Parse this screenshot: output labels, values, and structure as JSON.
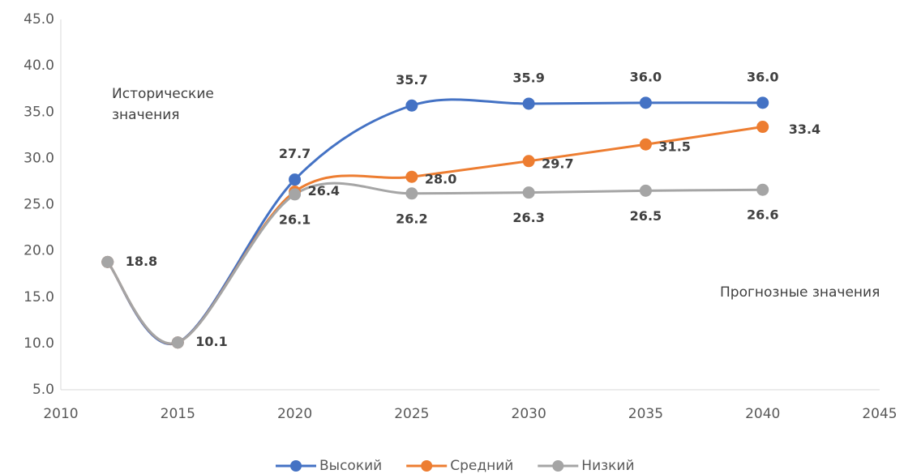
{
  "chart_data": {
    "type": "line",
    "x": [
      2012,
      2015,
      2020,
      2025,
      2030,
      2035,
      2040
    ],
    "series": [
      {
        "name": "Высокий",
        "color": "#4472c4",
        "values": [
          18.8,
          10.1,
          27.7,
          35.7,
          35.9,
          36.0,
          36.0
        ],
        "value_labels": [
          null,
          null,
          "27.7",
          "35.7",
          "35.9",
          "36.0",
          "36.0"
        ]
      },
      {
        "name": "Средний",
        "color": "#ed7d31",
        "values": [
          18.8,
          10.1,
          26.4,
          28.0,
          29.7,
          31.5,
          33.4
        ],
        "value_labels": [
          null,
          null,
          "26.4",
          "28.0",
          "29.7",
          "31.5",
          "33.4"
        ]
      },
      {
        "name": "Низкий",
        "color": "#a5a5a5",
        "values": [
          18.8,
          10.1,
          26.1,
          26.2,
          26.3,
          26.5,
          26.6
        ],
        "value_labels": [
          "18.8",
          "10.1",
          "26.1",
          "26.2",
          "26.3",
          "26.5",
          "26.6"
        ]
      }
    ],
    "annotations": [
      "Исторические значения",
      "Прогнозные значения"
    ],
    "xlim": [
      2010,
      2045
    ],
    "xticks": [
      2010,
      2015,
      2020,
      2025,
      2030,
      2035,
      2040,
      2045
    ],
    "ylim": [
      5,
      45
    ],
    "yticks": [
      {
        "value": 5,
        "label": "5.0"
      },
      {
        "value": 10,
        "label": "10.0"
      },
      {
        "value": 15,
        "label": "15.0"
      },
      {
        "value": 20,
        "label": "20.0"
      },
      {
        "value": 25,
        "label": "25.0"
      },
      {
        "value": 30,
        "label": "30.0"
      },
      {
        "value": 35,
        "label": "35.0"
      },
      {
        "value": 40,
        "label": "40.0"
      },
      {
        "value": 45,
        "label": "45.0"
      }
    ],
    "grid": false,
    "smooth": true,
    "legend": "bottom"
  }
}
